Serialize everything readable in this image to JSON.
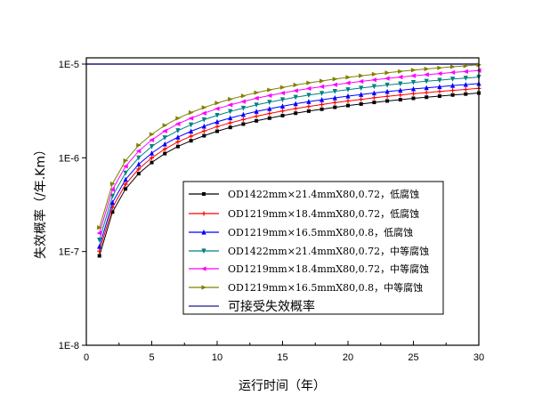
{
  "chart_data": {
    "type": "line",
    "title": "",
    "xlabel": "运行时间（年）",
    "ylabel": "失效概率（/年.Km）",
    "xlim": [
      0,
      30
    ],
    "ylim": [
      1e-08,
      1.2e-05
    ],
    "yscale": "log",
    "xticks": [
      0,
      5,
      10,
      15,
      20,
      25,
      30
    ],
    "yticks": [
      1e-08,
      1e-07,
      1e-06,
      1e-05
    ],
    "ytick_labels": [
      "1E-8",
      "1E-7",
      "1E-6",
      "1E-5"
    ],
    "grid": false,
    "legend_placement": "bottom-right",
    "x": [
      1,
      2,
      3,
      4,
      5,
      6,
      7,
      8,
      9,
      10,
      11,
      12,
      13,
      14,
      15,
      16,
      17,
      18,
      19,
      20,
      21,
      22,
      23,
      24,
      25,
      26,
      27,
      28,
      29,
      30
    ],
    "series": [
      {
        "name": "OD1422mm×21.4mmX80,0.72，低腐蚀",
        "color": "#000000",
        "marker": "square",
        "values": [
          9e-08,
          2.64e-07,
          4.66e-07,
          6.78e-07,
          8.91e-07,
          1.11e-06,
          1.32e-06,
          1.52e-06,
          1.72e-06,
          1.92e-06,
          2.11e-06,
          2.29e-06,
          2.48e-06,
          2.65e-06,
          2.82e-06,
          2.99e-06,
          3.15e-06,
          3.3e-06,
          3.46e-06,
          3.61e-06,
          3.75e-06,
          3.9e-06,
          4.04e-06,
          4.17e-06,
          4.31e-06,
          4.43e-06,
          4.55e-06,
          4.68e-06,
          4.79e-06,
          4.91e-06
        ]
      },
      {
        "name": "OD1219mm×18.4mmX80,0.72，低腐蚀",
        "color": "#ff0000",
        "marker": "plus",
        "values": [
          1.01e-07,
          2.96e-07,
          5.22e-07,
          7.59e-07,
          9.98e-07,
          1.24e-06,
          1.48e-06,
          1.7e-06,
          1.93e-06,
          2.15e-06,
          2.36e-06,
          2.56e-06,
          2.78e-06,
          2.97e-06,
          3.16e-06,
          3.35e-06,
          3.53e-06,
          3.7e-06,
          3.88e-06,
          4.04e-06,
          4.2e-06,
          4.37e-06,
          4.52e-06,
          4.67e-06,
          4.83e-06,
          4.96e-06,
          5.1e-06,
          5.24e-06,
          5.36e-06,
          5.5e-06
        ]
      },
      {
        "name": "OD1219mm×16.5mmX80,0.8，低腐蚀",
        "color": "#0000ff",
        "marker": "triangle-up",
        "values": [
          1.13e-07,
          3.33e-07,
          5.87e-07,
          8.54e-07,
          1.12e-06,
          1.4e-06,
          1.66e-06,
          1.92e-06,
          2.17e-06,
          2.42e-06,
          2.66e-06,
          2.89e-06,
          3.12e-06,
          3.34e-06,
          3.55e-06,
          3.77e-06,
          3.97e-06,
          4.16e-06,
          4.36e-06,
          4.55e-06,
          4.73e-06,
          4.91e-06,
          5.09e-06,
          5.25e-06,
          5.43e-06,
          5.58e-06,
          5.73e-06,
          5.9e-06,
          6.04e-06,
          6.19e-06
        ]
      },
      {
        "name": "OD1422mm×21.4mmX80,0.72，中等腐蚀",
        "color": "#008080",
        "marker": "triangle-down",
        "values": [
          1.33e-07,
          3.91e-07,
          6.9e-07,
          1e-06,
          1.32e-06,
          1.64e-06,
          1.95e-06,
          2.25e-06,
          2.55e-06,
          2.84e-06,
          3.12e-06,
          3.39e-06,
          3.67e-06,
          3.92e-06,
          4.17e-06,
          4.43e-06,
          4.66e-06,
          4.88e-06,
          5.12e-06,
          5.34e-06,
          5.55e-06,
          5.77e-06,
          5.98e-06,
          6.17e-06,
          6.38e-06,
          6.56e-06,
          6.73e-06,
          6.93e-06,
          7.09e-06,
          7.27e-06
        ]
      },
      {
        "name": "OD1219mm×18.4mmX80,0.72，中等腐蚀",
        "color": "#ff00ff",
        "marker": "triangle-left",
        "values": [
          1.57e-07,
          4.59e-07,
          8.11e-07,
          1.18e-06,
          1.55e-06,
          1.93e-06,
          2.3e-06,
          2.64e-06,
          2.99e-06,
          3.34e-06,
          3.67e-06,
          3.98e-06,
          4.32e-06,
          4.61e-06,
          4.91e-06,
          5.2e-06,
          5.48e-06,
          5.74e-06,
          6.02e-06,
          6.28e-06,
          6.53e-06,
          6.79e-06,
          7.03e-06,
          7.26e-06,
          7.5e-06,
          7.71e-06,
          7.92e-06,
          8.14e-06,
          8.33e-06,
          8.54e-06
        ]
      },
      {
        "name": "OD1219mm×16.5mmX80,0.8，中等腐蚀",
        "color": "#808000",
        "marker": "triangle-right",
        "values": [
          1.8e-07,
          5.28e-07,
          9.32e-07,
          1.36e-06,
          1.78e-06,
          2.22e-06,
          2.64e-06,
          3.04e-06,
          3.44e-06,
          3.84e-06,
          4.22e-06,
          4.58e-06,
          4.96e-06,
          5.3e-06,
          5.64e-06,
          5.98e-06,
          6.3e-06,
          6.6e-06,
          6.92e-06,
          7.22e-06,
          7.5e-06,
          7.8e-06,
          8.08e-06,
          8.34e-06,
          8.62e-06,
          8.86e-06,
          9.1e-06,
          9.36e-06,
          9.58e-06,
          9.82e-06
        ]
      }
    ],
    "reference_line": {
      "name": "可接受失效概率",
      "value": 1e-05,
      "color": "#1a1a8c"
    }
  }
}
